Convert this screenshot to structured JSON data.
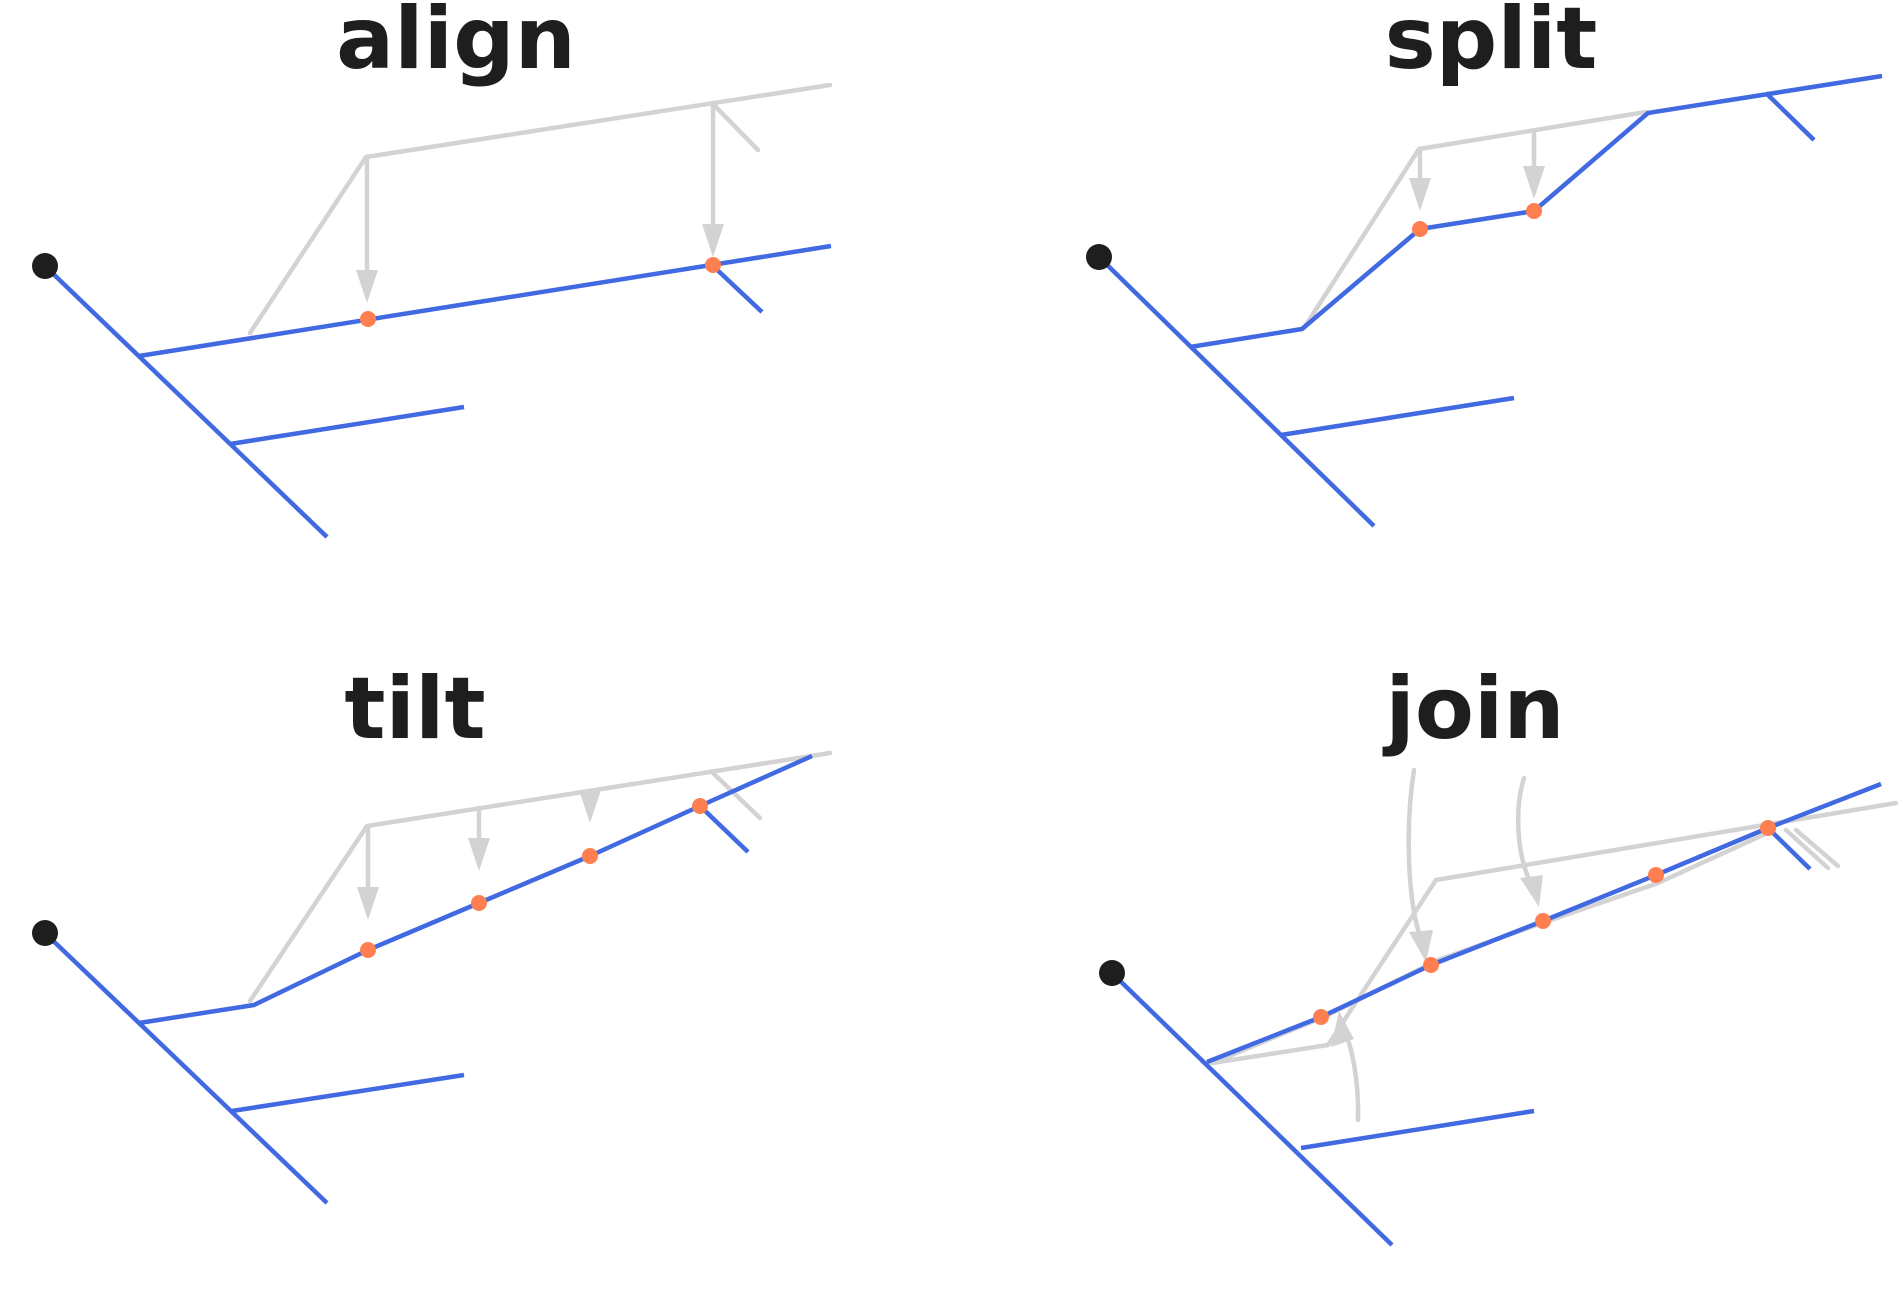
{
  "panels": [
    {
      "id": "align",
      "title": "align"
    },
    {
      "id": "split",
      "title": "split"
    },
    {
      "id": "tilt",
      "title": "tilt"
    },
    {
      "id": "join",
      "title": "join"
    }
  ],
  "colors": {
    "original_tree": "#d3d3d3",
    "transformed_tree": "#4169e1",
    "modified_point": "#ff7f50",
    "root_point": "#1e1e1e"
  }
}
